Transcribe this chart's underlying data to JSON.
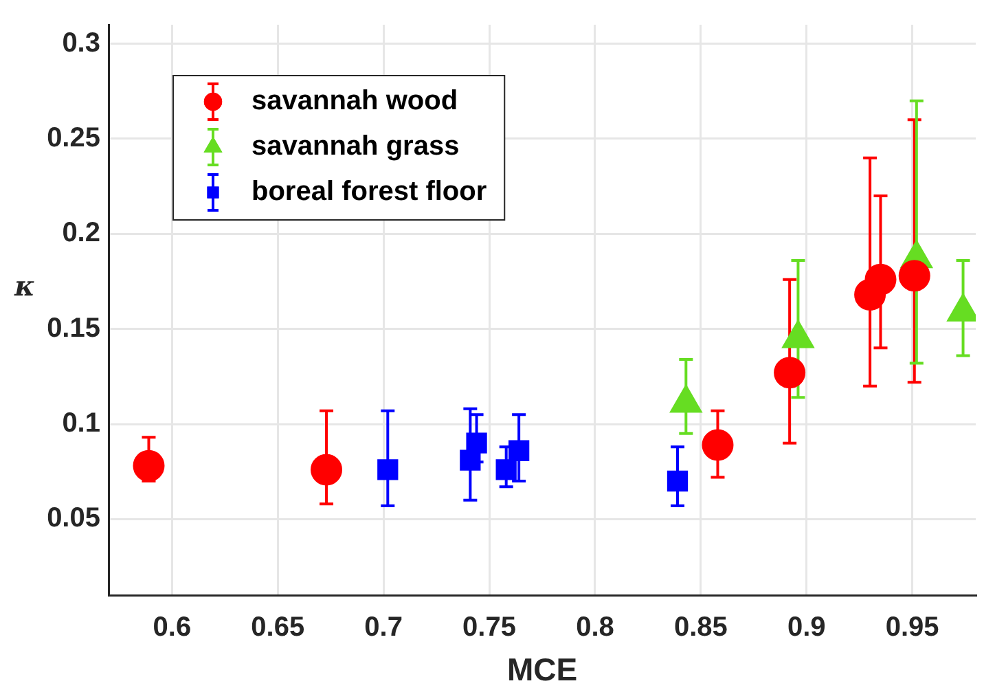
{
  "chart_data": {
    "type": "scatter",
    "xlabel": "MCE",
    "ylabel": "κ",
    "xlim": [
      0.57,
      0.98
    ],
    "xticks": [
      0.6,
      0.65,
      0.7,
      0.75,
      0.8,
      0.85,
      0.9,
      0.95
    ],
    "ylim": [
      0.01,
      0.31
    ],
    "yticks": [
      0.05,
      0.1,
      0.15,
      0.2,
      0.25,
      0.3
    ],
    "grid": true,
    "legend": "top left",
    "series": [
      {
        "name": "savannah wood",
        "color": "#ff0000",
        "marker": "circle",
        "x": [
          0.589,
          0.673,
          0.858,
          0.892,
          0.93,
          0.935,
          0.951
        ],
        "values": [
          0.078,
          0.076,
          0.089,
          0.127,
          0.168,
          0.176,
          0.178
        ],
        "errors": [
          [
            0.07,
            0.093
          ],
          [
            0.058,
            0.107
          ],
          [
            0.072,
            0.107
          ],
          [
            0.09,
            0.176
          ],
          [
            0.12,
            0.24
          ],
          [
            0.14,
            0.22
          ],
          [
            0.122,
            0.26
          ]
        ]
      },
      {
        "name": "savannah grass",
        "color": "#66dd22",
        "marker": "triangle",
        "x": [
          0.843,
          0.896,
          0.952,
          0.974
        ],
        "values": [
          0.111,
          0.145,
          0.187,
          0.159
        ],
        "errors": [
          [
            0.095,
            0.134
          ],
          [
            0.114,
            0.186
          ],
          [
            0.132,
            0.27
          ],
          [
            0.136,
            0.186
          ]
        ]
      },
      {
        "name": "boreal forest floor",
        "color": "#0000ff",
        "marker": "square",
        "x": [
          0.702,
          0.741,
          0.744,
          0.758,
          0.764,
          0.839
        ],
        "values": [
          0.076,
          0.081,
          0.09,
          0.076,
          0.086,
          0.07
        ],
        "errors": [
          [
            0.057,
            0.107
          ],
          [
            0.06,
            0.108
          ],
          [
            0.08,
            0.105
          ],
          [
            0.067,
            0.088
          ],
          [
            0.07,
            0.105
          ],
          [
            0.057,
            0.088
          ]
        ]
      }
    ]
  }
}
